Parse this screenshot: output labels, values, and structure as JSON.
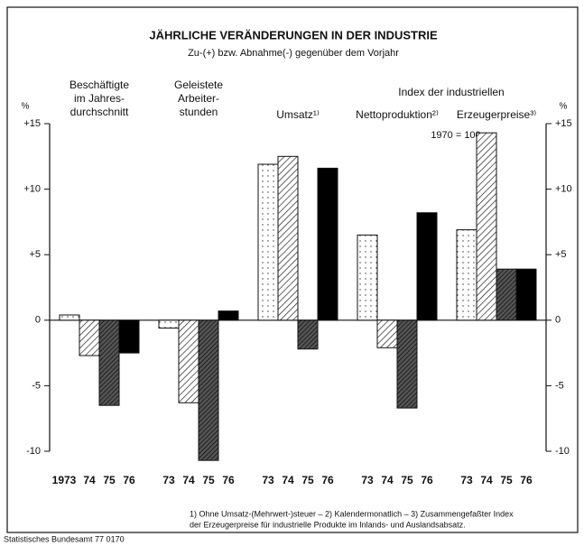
{
  "chart_data": {
    "type": "bar",
    "title": "JÄHRLICHE VERÄNDERUNGEN IN DER INDUSTRIE",
    "subtitle": "Zu-(+) bzw. Abnahme(-) gegenüber dem Vorjahr",
    "group_header": "Index der industriellen",
    "annotation": "1970 = 100",
    "categories": [
      [
        "Beschäftigte",
        "im Jahres-",
        "durchschnitt"
      ],
      [
        "Geleistete",
        "Arbeiter-",
        "stunden"
      ],
      [
        "Umsatz¹⁾"
      ],
      [
        "Nettoproduktion²⁾"
      ],
      [
        "Erzeugerpreise³⁾"
      ]
    ],
    "bar_labels": [
      [
        "1973",
        "74",
        "75",
        "76"
      ],
      [
        "73",
        "74",
        "75",
        "76"
      ],
      [
        "73",
        "74",
        "75",
        "76"
      ],
      [
        "73",
        "74",
        "75",
        "76"
      ],
      [
        "73",
        "74",
        "75",
        "76"
      ]
    ],
    "series": [
      {
        "color": "#ffffff",
        "pattern": "dots",
        "values": [
          0.4,
          -0.6,
          11.9,
          6.5,
          6.9
        ]
      },
      {
        "color": "#ffffff",
        "pattern": "hatch",
        "values": [
          -2.7,
          -6.3,
          12.5,
          -2.1,
          14.3
        ]
      },
      {
        "color": "#555555",
        "pattern": "hatch-dense",
        "values": [
          -6.5,
          -10.7,
          -2.2,
          -6.7,
          3.9
        ]
      },
      {
        "color": "#000000",
        "pattern": "solid",
        "values": [
          -2.5,
          0.7,
          11.6,
          8.2,
          3.9
        ]
      }
    ],
    "ylabel": "%",
    "y2label": "%",
    "ylim": [
      -10,
      15
    ],
    "yticks": [
      {
        "value": 15,
        "label": "+15"
      },
      {
        "value": 10,
        "label": "+10"
      },
      {
        "value": 5,
        "label": "+5"
      },
      0,
      -5,
      -10
    ],
    "y2lim": [
      -10,
      15
    ],
    "y2ticks": [
      {
        "value": 15,
        "label": "+15"
      },
      {
        "value": 10,
        "label": "+10"
      },
      {
        "value": 5,
        "label": "+5"
      },
      0,
      -5,
      -10
    ],
    "footnotes": [
      "1) Ohne Umsatz-(Mehrwert-)steuer – 2) Kalendermonatlich – 3) Zusammengefaßter Index",
      "der Erzeugerpreise für industrielle Produkte im Inlands- und Auslandsabsatz."
    ],
    "source": "Statistisches Bundesamt 77 0170"
  }
}
